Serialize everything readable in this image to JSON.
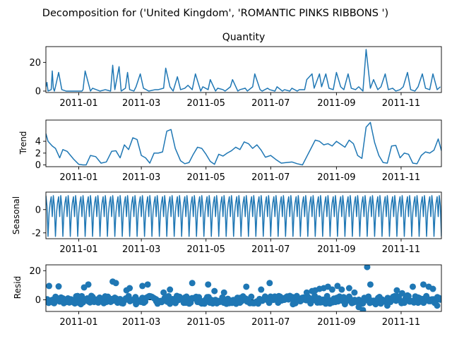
{
  "figure": {
    "suptitle": "Decomposition for ('United Kingdom', 'ROMANTIC PINKS RIBBONS ')"
  },
  "colors": {
    "line": "#1f77b4",
    "axis": "#000000",
    "background": "#ffffff"
  },
  "chart_data": [
    {
      "type": "line",
      "panel": "observed",
      "title": "Quantity",
      "ylabel": "",
      "ylim": [
        -1,
        31
      ],
      "yticks": [
        0,
        20
      ],
      "xlim": [
        "2010-12-01",
        "2011-12-09"
      ],
      "xticks": [
        "2011-01",
        "2011-03",
        "2011-05",
        "2011-07",
        "2011-09",
        "2011-11"
      ],
      "series": [
        {
          "x": [
            "2010-12-01",
            "2010-12-02",
            "2010-12-03",
            "2010-12-06",
            "2010-12-07",
            "2010-12-08",
            "2010-12-09",
            "2010-12-10",
            "2010-12-13",
            "2010-12-16",
            "2010-12-20",
            "2010-12-23",
            "2011-01-04",
            "2011-01-05",
            "2011-01-07",
            "2011-01-12",
            "2011-01-14",
            "2011-01-21",
            "2011-01-26",
            "2011-01-31",
            "2011-02-02",
            "2011-02-04",
            "2011-02-08",
            "2011-02-10",
            "2011-02-14",
            "2011-02-16",
            "2011-02-18",
            "2011-02-22",
            "2011-02-24",
            "2011-02-28",
            "2011-03-03",
            "2011-03-08",
            "2011-03-14",
            "2011-03-17",
            "2011-03-22",
            "2011-03-24",
            "2011-03-28",
            "2011-03-31",
            "2011-04-04",
            "2011-04-07",
            "2011-04-11",
            "2011-04-14",
            "2011-04-18",
            "2011-04-21",
            "2011-04-26",
            "2011-04-28",
            "2011-05-03",
            "2011-05-05",
            "2011-05-10",
            "2011-05-12",
            "2011-05-17",
            "2011-05-19",
            "2011-05-24",
            "2011-05-26",
            "2011-05-31",
            "2011-06-02",
            "2011-06-07",
            "2011-06-09",
            "2011-06-14",
            "2011-06-16",
            "2011-06-21",
            "2011-06-23",
            "2011-06-28",
            "2011-06-30",
            "2011-07-05",
            "2011-07-07",
            "2011-07-12",
            "2011-07-14",
            "2011-07-19",
            "2011-07-21",
            "2011-07-26",
            "2011-07-28",
            "2011-08-02",
            "2011-08-04",
            "2011-08-09",
            "2011-08-11",
            "2011-08-16",
            "2011-08-18",
            "2011-08-22",
            "2011-08-25",
            "2011-08-29",
            "2011-09-01",
            "2011-09-05",
            "2011-09-08",
            "2011-09-12",
            "2011-09-15",
            "2011-09-19",
            "2011-09-22",
            "2011-09-26",
            "2011-09-29",
            "2011-10-03",
            "2011-10-06",
            "2011-10-10",
            "2011-10-13",
            "2011-10-17",
            "2011-10-20",
            "2011-10-24",
            "2011-10-27",
            "2011-10-31",
            "2011-11-03",
            "2011-11-07",
            "2011-11-10",
            "2011-11-14",
            "2011-11-17",
            "2011-11-21",
            "2011-11-24",
            "2011-11-28",
            "2011-12-01",
            "2011-12-05",
            "2011-12-08"
          ],
          "y": [
            3,
            6,
            0,
            1,
            14,
            2,
            0,
            3,
            13,
            1,
            0,
            0,
            0,
            1,
            14,
            0,
            2,
            0,
            1,
            0,
            18,
            1,
            17,
            0,
            2,
            13,
            1,
            0,
            3,
            12,
            2,
            0,
            1,
            1,
            2,
            16,
            3,
            0,
            10,
            1,
            2,
            4,
            1,
            12,
            0,
            3,
            1,
            8,
            0,
            2,
            1,
            0,
            3,
            8,
            0,
            1,
            2,
            0,
            3,
            12,
            1,
            0,
            2,
            1,
            0,
            3,
            0,
            1,
            0,
            2,
            0,
            1,
            1,
            8,
            12,
            2,
            12,
            3,
            12,
            2,
            1,
            13,
            3,
            1,
            12,
            2,
            1,
            3,
            0,
            29,
            2,
            8,
            1,
            3,
            12,
            1,
            2,
            0,
            1,
            3,
            13,
            1,
            0,
            3,
            12,
            2,
            1,
            12,
            1,
            3
          ]
        }
      ]
    },
    {
      "type": "line",
      "panel": "trend",
      "title": "",
      "ylabel": "Trend",
      "ylim": [
        -0.3,
        7.6
      ],
      "yticks": [
        0,
        2,
        4
      ],
      "xlim": [
        "2010-12-01",
        "2011-12-09"
      ],
      "xticks": [
        "2011-01",
        "2011-03",
        "2011-05",
        "2011-07",
        "2011-09",
        "2011-11"
      ],
      "series": [
        {
          "x": [
            "2010-12-01",
            "2010-12-03",
            "2010-12-07",
            "2010-12-10",
            "2010-12-14",
            "2010-12-17",
            "2010-12-21",
            "2010-12-27",
            "2011-01-01",
            "2011-01-05",
            "2011-01-08",
            "2011-01-12",
            "2011-01-17",
            "2011-01-22",
            "2011-01-27",
            "2011-02-01",
            "2011-02-05",
            "2011-02-09",
            "2011-02-13",
            "2011-02-17",
            "2011-02-21",
            "2011-02-25",
            "2011-03-01",
            "2011-03-05",
            "2011-03-09",
            "2011-03-13",
            "2011-03-17",
            "2011-03-21",
            "2011-03-25",
            "2011-03-29",
            "2011-04-02",
            "2011-04-07",
            "2011-04-11",
            "2011-04-15",
            "2011-04-19",
            "2011-04-23",
            "2011-04-27",
            "2011-05-01",
            "2011-05-05",
            "2011-05-09",
            "2011-05-13",
            "2011-05-17",
            "2011-05-21",
            "2011-05-25",
            "2011-05-29",
            "2011-06-02",
            "2011-06-06",
            "2011-06-10",
            "2011-06-14",
            "2011-06-18",
            "2011-06-22",
            "2011-06-26",
            "2011-07-01",
            "2011-07-06",
            "2011-07-11",
            "2011-07-16",
            "2011-07-21",
            "2011-07-26",
            "2011-07-31",
            "2011-08-04",
            "2011-08-08",
            "2011-08-12",
            "2011-08-16",
            "2011-08-20",
            "2011-08-24",
            "2011-08-28",
            "2011-09-01",
            "2011-09-05",
            "2011-09-09",
            "2011-09-13",
            "2011-09-17",
            "2011-09-21",
            "2011-09-25",
            "2011-09-29",
            "2011-10-03",
            "2011-10-07",
            "2011-10-11",
            "2011-10-15",
            "2011-10-19",
            "2011-10-23",
            "2011-10-27",
            "2011-10-31",
            "2011-11-04",
            "2011-11-08",
            "2011-11-12",
            "2011-11-16",
            "2011-11-20",
            "2011-11-24",
            "2011-11-28",
            "2011-12-02",
            "2011-12-06",
            "2011-12-09"
          ],
          "y": [
            5.3,
            4.0,
            3.2,
            2.8,
            1.2,
            2.6,
            2.3,
            1.0,
            0.1,
            0.0,
            0.0,
            1.6,
            1.4,
            0.3,
            0.5,
            2.3,
            2.4,
            1.2,
            3.4,
            2.6,
            4.6,
            4.3,
            1.6,
            1.2,
            0.3,
            2.0,
            2.0,
            2.2,
            5.7,
            6.0,
            2.8,
            0.7,
            0.2,
            0.4,
            1.8,
            3.0,
            2.8,
            1.8,
            0.6,
            0.1,
            1.8,
            1.5,
            2.0,
            2.4,
            3.0,
            2.6,
            3.9,
            3.6,
            2.8,
            3.4,
            2.5,
            1.3,
            1.6,
            0.9,
            0.3,
            0.4,
            0.5,
            0.2,
            0.0,
            1.4,
            2.8,
            4.2,
            4.0,
            3.4,
            3.6,
            3.2,
            4.0,
            3.5,
            3.0,
            4.2,
            3.6,
            1.6,
            1.1,
            6.4,
            7.2,
            3.8,
            1.6,
            0.4,
            0.3,
            3.2,
            3.3,
            1.2,
            2.0,
            1.8,
            0.3,
            0.2,
            1.6,
            2.2,
            2.0,
            2.5,
            4.4,
            2.4
          ]
        }
      ]
    },
    {
      "type": "line",
      "panel": "seasonal",
      "title": "",
      "ylabel": "Seasonal",
      "ylim": [
        -2.5,
        1.5
      ],
      "yticks": [
        -2,
        0
      ],
      "xlim": [
        "2010-12-01",
        "2011-12-09"
      ],
      "xticks": [
        "2011-01",
        "2011-03",
        "2011-05",
        "2011-07",
        "2011-09",
        "2011-11"
      ],
      "series": [
        {
          "period_days": 7,
          "weekly_pattern": [
            1.2,
            0.3,
            -2.3,
            -0.3,
            0.6,
            1.1,
            -0.6
          ],
          "x_range": [
            "2010-12-01",
            "2011-12-09"
          ]
        }
      ]
    },
    {
      "type": "scatter",
      "panel": "resid",
      "title": "",
      "ylabel": "Resid",
      "ylim": [
        -8,
        24
      ],
      "yticks": [
        0,
        20
      ],
      "xlim": [
        "2010-12-01",
        "2011-12-09"
      ],
      "xticks": [
        "2011-01",
        "2011-03",
        "2011-05",
        "2011-07",
        "2011-09",
        "2011-11"
      ],
      "series": [
        {
          "x": [
            "2010-12-04",
            "2010-12-08",
            "2010-12-13",
            "2010-12-17",
            "2010-12-22",
            "2010-12-28",
            "2011-01-03",
            "2011-01-06",
            "2011-01-10",
            "2011-01-14",
            "2011-01-20",
            "2011-01-25",
            "2011-02-02",
            "2011-02-05",
            "2011-02-09",
            "2011-02-15",
            "2011-02-18",
            "2011-02-24",
            "2011-03-02",
            "2011-03-07",
            "2011-03-15",
            "2011-03-22",
            "2011-03-28",
            "2011-04-04",
            "2011-04-12",
            "2011-04-18",
            "2011-04-27",
            "2011-05-03",
            "2011-05-09",
            "2011-05-18",
            "2011-05-26",
            "2011-06-02",
            "2011-06-08",
            "2011-06-15",
            "2011-06-22",
            "2011-06-30",
            "2011-07-08",
            "2011-07-14",
            "2011-07-22",
            "2011-07-29",
            "2011-08-04",
            "2011-08-09",
            "2011-08-12",
            "2011-08-16",
            "2011-08-20",
            "2011-08-24",
            "2011-08-28",
            "2011-09-02",
            "2011-09-06",
            "2011-09-09",
            "2011-09-13",
            "2011-09-18",
            "2011-09-22",
            "2011-09-26",
            "2011-09-30",
            "2011-10-03",
            "2011-10-08",
            "2011-10-14",
            "2011-10-19",
            "2011-10-24",
            "2011-10-28",
            "2011-11-02",
            "2011-11-07",
            "2011-11-12",
            "2011-11-17",
            "2011-11-22",
            "2011-11-27",
            "2011-12-01",
            "2011-12-05"
          ],
          "y": [
            9.5,
            -2,
            9.2,
            1,
            -1,
            0,
            -3,
            8.5,
            10.5,
            2,
            -1,
            -2,
            12.5,
            11.5,
            0.5,
            6.5,
            8,
            -3,
            9.5,
            10.5,
            -1,
            5,
            7,
            0,
            -2,
            11.5,
            -1,
            10.5,
            6,
            5,
            -1,
            -2,
            9,
            -2,
            7,
            11.5,
            -2,
            0,
            -3,
            -1,
            5,
            6,
            6.5,
            7.5,
            8,
            9,
            7,
            9.5,
            7,
            -3,
            8,
            5,
            -5,
            -7,
            22.5,
            10.5,
            -3,
            -1,
            -4,
            1.5,
            6.5,
            4.5,
            3,
            9,
            -2,
            10.5,
            9,
            7.5,
            -4
          ]
        }
      ]
    }
  ]
}
